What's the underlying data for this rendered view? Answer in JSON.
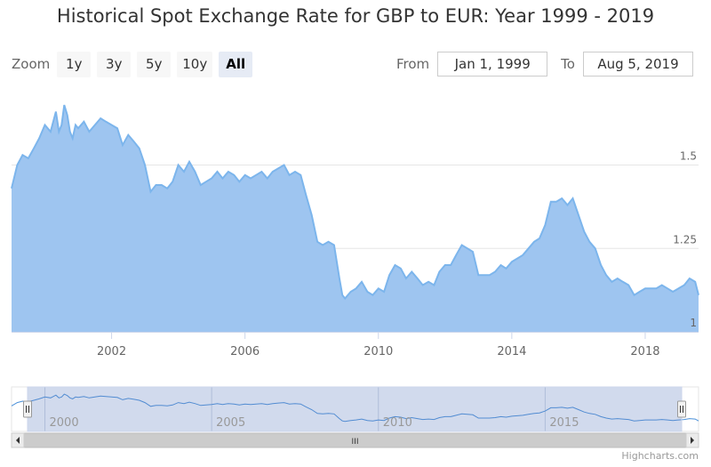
{
  "title": "Historical Spot Exchange Rate for GBP to EUR: Year 1999 - 2019",
  "zoom": {
    "label": "Zoom",
    "buttons": [
      "1y",
      "3y",
      "5y",
      "10y",
      "All"
    ],
    "selected": "All"
  },
  "range": {
    "from_label": "From",
    "from_value": "Jan 1, 1999",
    "to_label": "To",
    "to_value": "Aug 5, 2019"
  },
  "credits": "Highcharts.com",
  "colors": {
    "series_line": "#7cb5ec",
    "series_fill": "#9ec5f0",
    "navigator_line": "#4a90d9",
    "navigator_mask": "rgba(102,133,194,0.3)",
    "grid": "#e6e6e6"
  },
  "chart_data": {
    "type": "area",
    "x_type": "year",
    "xlim": [
      1999,
      2019.6
    ],
    "ylim": [
      1,
      1.72
    ],
    "x_ticks": [
      2002,
      2006,
      2010,
      2014,
      2018
    ],
    "y_ticks": [
      1,
      1.25,
      1.5
    ],
    "grid": true,
    "navigator": {
      "x_ticks": [
        2000,
        2005,
        2010,
        2015
      ],
      "scroll_handle_label": "III"
    },
    "series": [
      {
        "x": [
          1999.0,
          1999.17,
          1999.33,
          1999.5,
          1999.67,
          1999.83,
          2000.0,
          2000.17,
          2000.33,
          2000.42,
          2000.5,
          2000.58,
          2000.67,
          2000.75,
          2000.83,
          2000.92,
          2001.0,
          2001.17,
          2001.33,
          2001.5,
          2001.67,
          2001.83,
          2002.0,
          2002.17,
          2002.33,
          2002.5,
          2002.67,
          2002.83,
          2003.0,
          2003.17,
          2003.33,
          2003.5,
          2003.67,
          2003.83,
          2004.0,
          2004.17,
          2004.33,
          2004.5,
          2004.67,
          2004.83,
          2005.0,
          2005.17,
          2005.33,
          2005.5,
          2005.67,
          2005.83,
          2006.0,
          2006.17,
          2006.33,
          2006.5,
          2006.67,
          2006.83,
          2007.0,
          2007.17,
          2007.33,
          2007.5,
          2007.67,
          2007.83,
          2008.0,
          2008.17,
          2008.33,
          2008.5,
          2008.67,
          2008.83,
          2008.92,
          2009.0,
          2009.17,
          2009.33,
          2009.5,
          2009.67,
          2009.83,
          2010.0,
          2010.17,
          2010.33,
          2010.5,
          2010.67,
          2010.83,
          2011.0,
          2011.17,
          2011.33,
          2011.5,
          2011.67,
          2011.83,
          2012.0,
          2012.17,
          2012.33,
          2012.5,
          2012.67,
          2012.83,
          2013.0,
          2013.17,
          2013.33,
          2013.5,
          2013.67,
          2013.83,
          2014.0,
          2014.17,
          2014.33,
          2014.5,
          2014.67,
          2014.83,
          2015.0,
          2015.17,
          2015.33,
          2015.5,
          2015.67,
          2015.83,
          2016.0,
          2016.17,
          2016.33,
          2016.5,
          2016.67,
          2016.83,
          2017.0,
          2017.17,
          2017.33,
          2017.5,
          2017.67,
          2017.83,
          2018.0,
          2018.17,
          2018.33,
          2018.5,
          2018.67,
          2018.83,
          2019.0,
          2019.17,
          2019.33,
          2019.5,
          2019.6
        ],
        "y": [
          1.43,
          1.5,
          1.53,
          1.52,
          1.55,
          1.58,
          1.62,
          1.6,
          1.66,
          1.6,
          1.62,
          1.68,
          1.65,
          1.6,
          1.58,
          1.62,
          1.61,
          1.63,
          1.6,
          1.62,
          1.64,
          1.63,
          1.62,
          1.61,
          1.56,
          1.59,
          1.57,
          1.55,
          1.5,
          1.42,
          1.44,
          1.44,
          1.43,
          1.45,
          1.5,
          1.48,
          1.51,
          1.48,
          1.44,
          1.45,
          1.46,
          1.48,
          1.46,
          1.48,
          1.47,
          1.45,
          1.47,
          1.46,
          1.47,
          1.48,
          1.46,
          1.48,
          1.49,
          1.5,
          1.47,
          1.48,
          1.47,
          1.41,
          1.35,
          1.27,
          1.26,
          1.27,
          1.26,
          1.16,
          1.11,
          1.1,
          1.12,
          1.13,
          1.15,
          1.12,
          1.11,
          1.13,
          1.12,
          1.17,
          1.2,
          1.19,
          1.16,
          1.18,
          1.16,
          1.14,
          1.15,
          1.14,
          1.18,
          1.2,
          1.2,
          1.23,
          1.26,
          1.25,
          1.24,
          1.17,
          1.17,
          1.17,
          1.18,
          1.2,
          1.19,
          1.21,
          1.22,
          1.23,
          1.25,
          1.27,
          1.28,
          1.32,
          1.39,
          1.39,
          1.4,
          1.38,
          1.4,
          1.35,
          1.3,
          1.27,
          1.25,
          1.2,
          1.17,
          1.15,
          1.16,
          1.15,
          1.14,
          1.11,
          1.12,
          1.13,
          1.13,
          1.13,
          1.14,
          1.13,
          1.12,
          1.13,
          1.14,
          1.16,
          1.15,
          1.11
        ]
      }
    ]
  }
}
